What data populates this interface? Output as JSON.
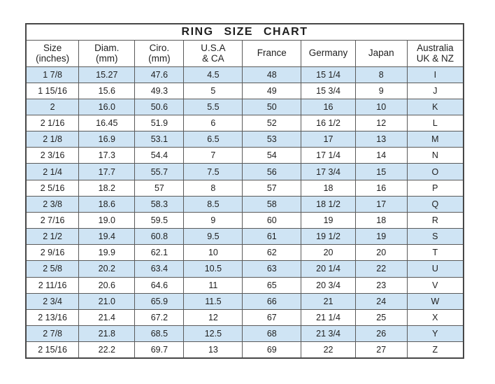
{
  "chart_data": {
    "type": "table",
    "title": "RING SIZE CHART",
    "columns": [
      {
        "line1": "Size",
        "line2": "(inches)"
      },
      {
        "line1": "Diam.",
        "line2": "(mm)"
      },
      {
        "line1": "Ciro.",
        "line2": "(mm)"
      },
      {
        "line1": "U.S.A",
        "line2": "& CA"
      },
      {
        "line1": "France",
        "line2": ""
      },
      {
        "line1": "Germany",
        "line2": ""
      },
      {
        "line1": "Japan",
        "line2": ""
      },
      {
        "line1": "Australia",
        "line2": "UK & NZ"
      }
    ],
    "rows": [
      [
        "1 7/8",
        "15.27",
        "47.6",
        "4.5",
        "48",
        "15 1/4",
        "8",
        "I"
      ],
      [
        "1 15/16",
        "15.6",
        "49.3",
        "5",
        "49",
        "15 3/4",
        "9",
        "J"
      ],
      [
        "2",
        "16.0",
        "50.6",
        "5.5",
        "50",
        "16",
        "10",
        "K"
      ],
      [
        "2 1/16",
        "16.45",
        "51.9",
        "6",
        "52",
        "16 1/2",
        "12",
        "L"
      ],
      [
        "2 1/8",
        "16.9",
        "53.1",
        "6.5",
        "53",
        "17",
        "13",
        "M"
      ],
      [
        "2 3/16",
        "17.3",
        "54.4",
        "7",
        "54",
        "17 1/4",
        "14",
        "N"
      ],
      [
        "2 1/4",
        "17.7",
        "55.7",
        "7.5",
        "56",
        "17 3/4",
        "15",
        "O"
      ],
      [
        "2 5/16",
        "18.2",
        "57",
        "8",
        "57",
        "18",
        "16",
        "P"
      ],
      [
        "2 3/8",
        "18.6",
        "58.3",
        "8.5",
        "58",
        "18 1/2",
        "17",
        "Q"
      ],
      [
        "2 7/16",
        "19.0",
        "59.5",
        "9",
        "60",
        "19",
        "18",
        "R"
      ],
      [
        "2 1/2",
        "19.4",
        "60.8",
        "9.5",
        "61",
        "19 1/2",
        "19",
        "S"
      ],
      [
        "2 9/16",
        "19.9",
        "62.1",
        "10",
        "62",
        "20",
        "20",
        "T"
      ],
      [
        "2 5/8",
        "20.2",
        "63.4",
        "10.5",
        "63",
        "20 1/4",
        "22",
        "U"
      ],
      [
        "2 11/16",
        "20.6",
        "64.6",
        "11",
        "65",
        "20 3/4",
        "23",
        "V"
      ],
      [
        "2 3/4",
        "21.0",
        "65.9",
        "11.5",
        "66",
        "21",
        "24",
        "W"
      ],
      [
        "2 13/16",
        "21.4",
        "67.2",
        "12",
        "67",
        "21 1/4",
        "25",
        "X"
      ],
      [
        "2 7/8",
        "21.8",
        "68.5",
        "12.5",
        "68",
        "21 3/4",
        "26",
        "Y"
      ],
      [
        "2 15/16",
        "22.2",
        "69.7",
        "13",
        "69",
        "22",
        "27",
        "Z"
      ]
    ]
  },
  "colors": {
    "row_alt": "#cfe4f4",
    "border": "#474747",
    "text": "#1f1f1f",
    "background": "#ffffff"
  }
}
